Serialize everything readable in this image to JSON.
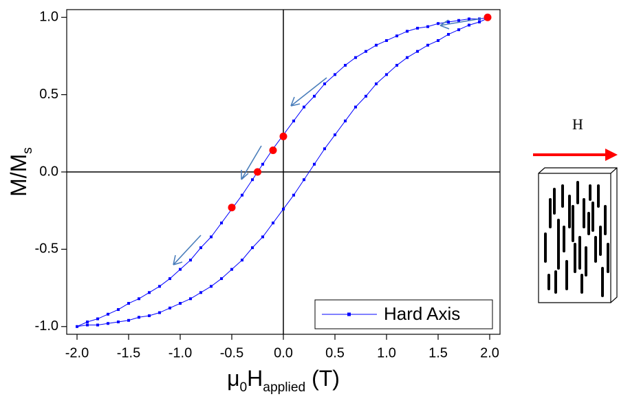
{
  "chart_data": {
    "type": "line",
    "xlabel": [
      {
        "text": "μ"
      },
      {
        "text": "0",
        "sub": true
      },
      {
        "text": "H"
      },
      {
        "text": "applied",
        "sub": true
      },
      {
        "text": " (T)"
      }
    ],
    "ylabel": [
      {
        "text": "M/M"
      },
      {
        "text": "s",
        "sub": true
      }
    ],
    "xlim": [
      -2.1,
      2.1
    ],
    "ylim": [
      -1.05,
      1.05
    ],
    "xticks": [
      {
        "value": -2,
        "label": "-2.0"
      },
      {
        "value": -1.5,
        "label": "-1.5"
      },
      {
        "value": -1,
        "label": "-1.0"
      },
      {
        "value": -0.5,
        "label": "-0.5"
      },
      {
        "value": 0,
        "label": "0.0"
      },
      {
        "value": 0.5,
        "label": "0.5"
      },
      {
        "value": 1,
        "label": "1.0"
      },
      {
        "value": 1.5,
        "label": "1.5"
      },
      {
        "value": 2,
        "label": "2.0"
      }
    ],
    "yticks": [
      {
        "value": -1,
        "label": "-1.0"
      },
      {
        "value": -0.5,
        "label": "-0.5"
      },
      {
        "value": 0,
        "label": "0.0"
      },
      {
        "value": 0.5,
        "label": "0.5"
      },
      {
        "value": 1,
        "label": "1.0"
      }
    ],
    "zero_lines": true,
    "legend": "lower right",
    "series": [
      {
        "name": "Hard Axis",
        "color": "#0000ff",
        "x": [
          2.0,
          1.9,
          1.8,
          1.7,
          1.6,
          1.5,
          1.4,
          1.3,
          1.2,
          1.1,
          1.0,
          0.9,
          0.8,
          0.7,
          0.6,
          0.5,
          0.4,
          0.3,
          0.2,
          0.1,
          0.0,
          -0.1,
          -0.2,
          -0.3,
          -0.4,
          -0.5,
          -0.6,
          -0.7,
          -0.8,
          -0.9,
          -1.0,
          -1.1,
          -1.2,
          -1.3,
          -1.4,
          -1.5,
          -1.6,
          -1.7,
          -1.8,
          -1.9,
          -2.0,
          -1.9,
          -1.8,
          -1.7,
          -1.6,
          -1.5,
          -1.4,
          -1.3,
          -1.2,
          -1.1,
          -1.0,
          -0.9,
          -0.8,
          -0.7,
          -0.6,
          -0.5,
          -0.4,
          -0.3,
          -0.2,
          -0.1,
          0.0,
          0.1,
          0.2,
          0.3,
          0.4,
          0.5,
          0.6,
          0.7,
          0.8,
          0.9,
          1.0,
          1.1,
          1.2,
          1.3,
          1.4,
          1.5,
          1.6,
          1.7,
          1.8,
          1.9,
          2.0
        ],
        "values": [
          1.0,
          0.99,
          0.99,
          0.98,
          0.97,
          0.96,
          0.94,
          0.93,
          0.91,
          0.88,
          0.85,
          0.82,
          0.78,
          0.74,
          0.69,
          0.63,
          0.57,
          0.49,
          0.42,
          0.33,
          0.24,
          0.15,
          0.05,
          -0.05,
          -0.15,
          -0.24,
          -0.33,
          -0.42,
          -0.49,
          -0.57,
          -0.63,
          -0.69,
          -0.74,
          -0.78,
          -0.82,
          -0.85,
          -0.89,
          -0.92,
          -0.95,
          -0.97,
          -1.0,
          -0.99,
          -0.99,
          -0.98,
          -0.97,
          -0.96,
          -0.94,
          -0.93,
          -0.91,
          -0.88,
          -0.85,
          -0.82,
          -0.78,
          -0.74,
          -0.69,
          -0.63,
          -0.57,
          -0.49,
          -0.42,
          -0.33,
          -0.24,
          -0.15,
          -0.05,
          0.05,
          0.15,
          0.24,
          0.33,
          0.42,
          0.49,
          0.57,
          0.63,
          0.69,
          0.74,
          0.78,
          0.82,
          0.85,
          0.89,
          0.92,
          0.95,
          0.97,
          1.0
        ]
      }
    ],
    "markers": {
      "color": "#ff0000",
      "x": [
        1.98,
        0.0,
        -0.1,
        -0.25,
        -0.5
      ],
      "values": [
        1.0,
        0.23,
        0.14,
        0.0,
        -0.23
      ]
    }
  },
  "diagram": {
    "field_label": "H"
  }
}
